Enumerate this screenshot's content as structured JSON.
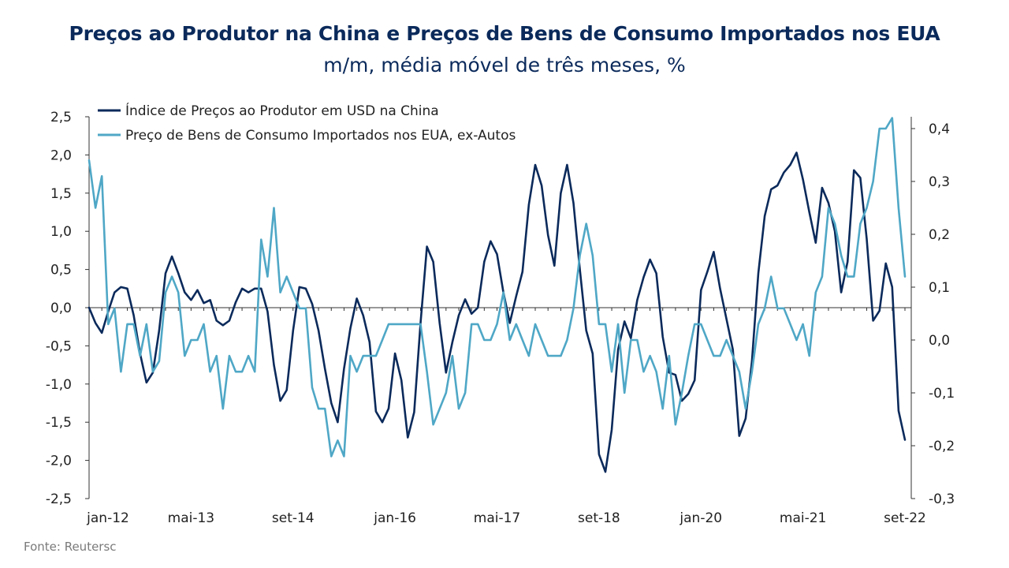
{
  "header": {
    "title": "Preços ao Produtor na China e Preços de Bens de Consumo Importados nos EUA",
    "subtitle": "m/m, média móvel de três meses, %"
  },
  "footer": {
    "source": "Fonte: Reutersc"
  },
  "chart_data": {
    "type": "line",
    "x_tick_labels": [
      "jan-12",
      "mai-13",
      "set-14",
      "jan-16",
      "mai-17",
      "set-18",
      "jan-20",
      "mai-21",
      "set-22"
    ],
    "y_left": {
      "range": [
        -2.5,
        2.5
      ],
      "ticks": [
        "2,5",
        "2,0",
        "1,5",
        "1,0",
        "0,5",
        "0,0",
        "-0,5",
        "-1,0",
        "-1,5",
        "-2,0",
        "-2,5"
      ],
      "tick_values": [
        2.5,
        2.0,
        1.5,
        1.0,
        0.5,
        0.0,
        -0.5,
        -1.0,
        -1.5,
        -2.0,
        -2.5
      ]
    },
    "y_right": {
      "range": [
        -0.3,
        0.42
      ],
      "ticks": [
        "0,4",
        "0,3",
        "0,2",
        "0,1",
        "0,0",
        "-0,1",
        "-0,2",
        "-0,3"
      ],
      "tick_values": [
        0.4,
        0.3,
        0.2,
        0.1,
        0.0,
        -0.1,
        -0.2,
        -0.3
      ]
    },
    "legend_position": "top-left",
    "series": [
      {
        "name": "Índice de Preços ao Produtor  em USD na China",
        "axis": "left",
        "color": "#0b2a5b",
        "values": [
          0.0,
          -0.2,
          -0.33,
          -0.05,
          0.2,
          0.27,
          0.25,
          -0.1,
          -0.6,
          -0.98,
          -0.85,
          -0.3,
          0.45,
          0.67,
          0.45,
          0.2,
          0.1,
          0.23,
          0.06,
          0.1,
          -0.17,
          -0.23,
          -0.17,
          0.07,
          0.25,
          0.2,
          0.25,
          0.25,
          -0.05,
          -0.75,
          -1.22,
          -1.08,
          -0.3,
          0.27,
          0.25,
          0.05,
          -0.3,
          -0.8,
          -1.25,
          -1.5,
          -0.8,
          -0.27,
          0.12,
          -0.1,
          -0.45,
          -1.36,
          -1.5,
          -1.32,
          -0.6,
          -0.95,
          -1.7,
          -1.37,
          -0.2,
          0.8,
          0.6,
          -0.2,
          -0.85,
          -0.45,
          -0.1,
          0.11,
          -0.08,
          0.0,
          0.6,
          0.87,
          0.7,
          0.2,
          -0.2,
          0.15,
          0.47,
          1.35,
          1.87,
          1.6,
          0.95,
          0.55,
          1.5,
          1.87,
          1.37,
          0.5,
          -0.3,
          -0.6,
          -1.92,
          -2.15,
          -1.6,
          -0.55,
          -0.18,
          -0.4,
          0.1,
          0.4,
          0.63,
          0.45,
          -0.38,
          -0.85,
          -0.88,
          -1.22,
          -1.13,
          -0.95,
          0.23,
          0.47,
          0.73,
          0.25,
          -0.15,
          -0.55,
          -1.68,
          -1.45,
          -0.7,
          0.45,
          1.2,
          1.55,
          1.6,
          1.77,
          1.87,
          2.03,
          1.68,
          1.25,
          0.85,
          1.57,
          1.37,
          1.0,
          0.2,
          0.6,
          1.8,
          1.7,
          0.9,
          -0.17,
          -0.04,
          0.58,
          0.27,
          -1.35,
          -1.73
        ]
      },
      {
        "name": "Preço de Bens de Consumo  Importados nos EUA, ex-Autos",
        "axis": "right",
        "color": "#4fa7c6",
        "values": [
          0.34,
          0.25,
          0.31,
          0.03,
          0.06,
          -0.06,
          0.03,
          0.03,
          -0.03,
          0.03,
          -0.06,
          -0.04,
          0.09,
          0.12,
          0.09,
          -0.03,
          0.0,
          0.0,
          0.03,
          -0.06,
          -0.03,
          -0.13,
          -0.03,
          -0.06,
          -0.06,
          -0.03,
          -0.06,
          0.19,
          0.12,
          0.25,
          0.09,
          0.12,
          0.09,
          0.06,
          0.06,
          -0.09,
          -0.13,
          -0.13,
          -0.22,
          -0.19,
          -0.22,
          -0.03,
          -0.06,
          -0.03,
          -0.03,
          -0.03,
          0.0,
          0.03,
          0.03,
          0.03,
          0.03,
          0.03,
          0.03,
          -0.06,
          -0.16,
          -0.13,
          -0.1,
          -0.03,
          -0.13,
          -0.1,
          0.03,
          0.03,
          0.0,
          0.0,
          0.03,
          0.09,
          0.0,
          0.03,
          0.0,
          -0.03,
          0.03,
          0.0,
          -0.03,
          -0.03,
          -0.03,
          0.0,
          0.06,
          0.16,
          0.22,
          0.16,
          0.03,
          0.03,
          -0.06,
          0.03,
          -0.1,
          0.0,
          0.0,
          -0.06,
          -0.03,
          -0.06,
          -0.13,
          -0.03,
          -0.16,
          -0.1,
          -0.03,
          0.03,
          0.03,
          0.0,
          -0.03,
          -0.03,
          0.0,
          -0.03,
          -0.06,
          -0.13,
          -0.06,
          0.03,
          0.06,
          0.12,
          0.06,
          0.06,
          0.03,
          0.0,
          0.03,
          -0.03,
          0.09,
          0.12,
          0.25,
          0.22,
          0.16,
          0.12,
          0.12,
          0.22,
          0.25,
          0.3,
          0.4,
          0.4,
          0.42,
          0.25,
          0.12
        ]
      }
    ]
  }
}
